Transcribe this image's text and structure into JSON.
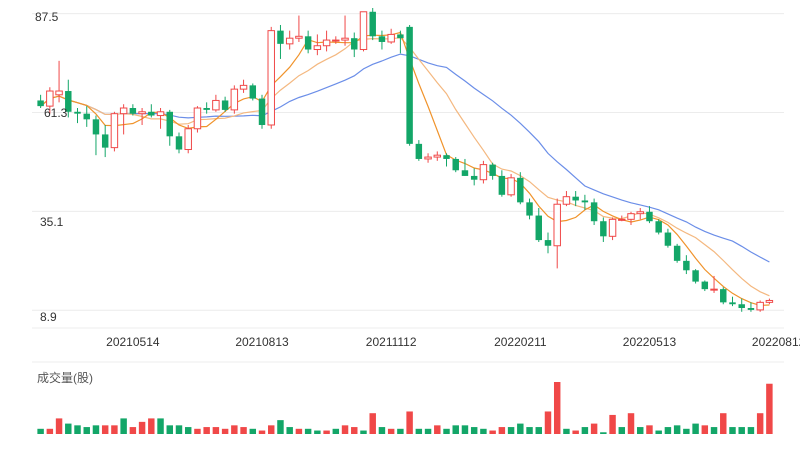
{
  "chart_data": {
    "type": "candlestick",
    "colors": {
      "up": "#f04848",
      "down": "#13a668",
      "ma5": "#f0932b",
      "ma10": "#f4b880",
      "ma20": "#6b8ee8",
      "grid": "#ececec"
    },
    "price_axis": {
      "ylim": [
        5.0,
        89.0
      ],
      "ticks": [
        "87.5",
        "61.3",
        "35.1",
        "8.9"
      ],
      "tick_values": [
        87.5,
        61.3,
        35.1,
        8.9
      ]
    },
    "x_ticks": [
      {
        "label": "20210514",
        "index": 10
      },
      {
        "label": "20210813",
        "index": 24
      },
      {
        "label": "20211112",
        "index": 38
      },
      {
        "label": "20220211",
        "index": 52
      },
      {
        "label": "20220513",
        "index": 66
      },
      {
        "label": "20220812",
        "index": 80
      }
    ],
    "candles": [
      [
        64.5,
        66.0,
        62.5,
        63.0
      ],
      [
        63.0,
        68.0,
        61.0,
        67.0
      ],
      [
        66.0,
        75.0,
        64.0,
        67.0
      ],
      [
        67.0,
        70.0,
        60.0,
        61.5
      ],
      [
        61.5,
        62.5,
        58.5,
        61.0
      ],
      [
        61.0,
        63.0,
        57.5,
        59.5
      ],
      [
        59.5,
        60.5,
        50.0,
        55.5
      ],
      [
        55.5,
        58.0,
        49.5,
        52.0
      ],
      [
        52.0,
        61.5,
        51.0,
        61.0
      ],
      [
        61.0,
        63.5,
        55.5,
        62.5
      ],
      [
        62.5,
        63.5,
        60.5,
        61.0
      ],
      [
        61.0,
        62.5,
        58.0,
        61.5
      ],
      [
        61.5,
        63.5,
        60.0,
        60.5
      ],
      [
        60.5,
        62.5,
        57.0,
        61.5
      ],
      [
        61.5,
        62.0,
        52.5,
        55.0
      ],
      [
        55.0,
        56.0,
        50.5,
        51.5
      ],
      [
        51.5,
        58.0,
        50.5,
        57.0
      ],
      [
        57.0,
        63.0,
        56.0,
        62.5
      ],
      [
        62.5,
        64.0,
        61.0,
        62.0
      ],
      [
        62.0,
        66.0,
        61.5,
        64.5
      ],
      [
        64.5,
        65.5,
        61.5,
        62.0
      ],
      [
        62.0,
        68.5,
        61.0,
        67.5
      ],
      [
        67.5,
        70.0,
        66.5,
        68.5
      ],
      [
        68.5,
        69.0,
        64.5,
        65.0
      ],
      [
        65.0,
        66.0,
        57.0,
        58.0
      ],
      [
        58.0,
        84.0,
        57.0,
        83.0
      ],
      [
        83.0,
        84.5,
        75.5,
        79.5
      ],
      [
        79.5,
        83.0,
        78.0,
        81.0
      ],
      [
        81.0,
        87.0,
        80.0,
        81.5
      ],
      [
        81.5,
        83.0,
        77.0,
        78.0
      ],
      [
        78.0,
        82.0,
        76.5,
        79.0
      ],
      [
        79.0,
        83.0,
        77.5,
        80.5
      ],
      [
        80.5,
        81.5,
        79.5,
        80.5
      ],
      [
        80.5,
        87.0,
        79.0,
        81.0
      ],
      [
        81.0,
        82.5,
        76.0,
        78.0
      ],
      [
        78.0,
        88.0,
        77.5,
        88.0
      ],
      [
        88.0,
        89.0,
        80.5,
        81.5
      ],
      [
        81.5,
        83.0,
        78.0,
        80.0
      ],
      [
        80.0,
        83.5,
        79.5,
        82.0
      ],
      [
        82.0,
        83.0,
        77.0,
        81.0
      ],
      [
        84.0,
        84.5,
        52.5,
        53.0
      ],
      [
        53.0,
        54.0,
        48.5,
        49.0
      ],
      [
        49.0,
        50.5,
        48.0,
        49.5
      ],
      [
        49.5,
        51.0,
        48.5,
        50.0
      ],
      [
        50.0,
        50.5,
        47.0,
        49.0
      ],
      [
        49.0,
        49.5,
        45.5,
        46.0
      ],
      [
        46.0,
        49.0,
        44.5,
        44.5
      ],
      [
        44.5,
        46.5,
        42.0,
        43.5
      ],
      [
        43.5,
        48.5,
        42.5,
        47.5
      ],
      [
        47.5,
        48.0,
        43.5,
        44.5
      ],
      [
        44.5,
        46.0,
        39.0,
        39.5
      ],
      [
        39.5,
        45.0,
        39.0,
        44.0
      ],
      [
        44.0,
        45.5,
        37.0,
        37.5
      ],
      [
        37.5,
        38.5,
        33.0,
        34.0
      ],
      [
        34.0,
        36.0,
        27.0,
        27.5
      ],
      [
        27.5,
        29.5,
        24.0,
        26.0
      ],
      [
        26.0,
        38.5,
        20.0,
        37.0
      ],
      [
        37.0,
        40.5,
        36.5,
        39.0
      ],
      [
        39.0,
        40.5,
        36.5,
        38.0
      ],
      [
        38.0,
        39.5,
        35.5,
        37.5
      ],
      [
        37.5,
        38.5,
        31.5,
        32.5
      ],
      [
        32.5,
        33.5,
        27.0,
        28.5
      ],
      [
        28.5,
        33.5,
        27.5,
        33.0
      ],
      [
        33.0,
        34.0,
        32.5,
        33.0
      ],
      [
        33.0,
        35.0,
        31.5,
        34.5
      ],
      [
        34.5,
        36.0,
        33.0,
        35.0
      ],
      [
        35.0,
        36.5,
        32.0,
        32.5
      ],
      [
        32.5,
        33.0,
        29.0,
        29.5
      ],
      [
        29.5,
        30.5,
        25.5,
        26.0
      ],
      [
        26.0,
        26.5,
        21.5,
        22.0
      ],
      [
        22.0,
        23.5,
        18.5,
        19.5
      ],
      [
        19.5,
        19.8,
        16.0,
        16.5
      ],
      [
        16.5,
        16.8,
        14.0,
        14.5
      ],
      [
        14.5,
        18.0,
        13.5,
        14.5
      ],
      [
        14.5,
        15.0,
        10.5,
        11.0
      ],
      [
        11.0,
        12.5,
        10.0,
        10.5
      ],
      [
        10.5,
        12.0,
        8.5,
        9.5
      ],
      [
        9.5,
        11.0,
        8.5,
        9.0
      ],
      [
        9.0,
        11.5,
        8.5,
        11.0
      ],
      [
        11.0,
        12.0,
        10.5,
        11.5
      ]
    ],
    "volumes": [
      3,
      3,
      9,
      6,
      5,
      4,
      5,
      5,
      5,
      9,
      4,
      7,
      9,
      9,
      5,
      5,
      4,
      3,
      4,
      4,
      3,
      5,
      4,
      3,
      2,
      5,
      8,
      4,
      3,
      3,
      2,
      2,
      3,
      5,
      4,
      2,
      12,
      4,
      3,
      3,
      13,
      3,
      3,
      5,
      3,
      5,
      5,
      4,
      3,
      2,
      4,
      4,
      6,
      4,
      4,
      13,
      30,
      3,
      2,
      4,
      6,
      1,
      11,
      4,
      12,
      4,
      5,
      2,
      4,
      5,
      3,
      6,
      5,
      4,
      12,
      4,
      4,
      4,
      12,
      29
    ],
    "volume_up": [
      false,
      true,
      true,
      false,
      false,
      false,
      false,
      true,
      true,
      false,
      true,
      true,
      true,
      false,
      false,
      false,
      false,
      true,
      true,
      true,
      true,
      true,
      true,
      false,
      true,
      true,
      false,
      false,
      true,
      false,
      false,
      true,
      false,
      true,
      true,
      false,
      true,
      false,
      true,
      false,
      true,
      false,
      false,
      true,
      false,
      false,
      false,
      false,
      false,
      true,
      true,
      false,
      false,
      false,
      false,
      true,
      true,
      false,
      true,
      false,
      true,
      false,
      true,
      false,
      true,
      false,
      true,
      false,
      false,
      false,
      false,
      false,
      true,
      false,
      true,
      false,
      false,
      false,
      true,
      true
    ]
  },
  "volume_panel": {
    "title": "成交量(股)"
  }
}
